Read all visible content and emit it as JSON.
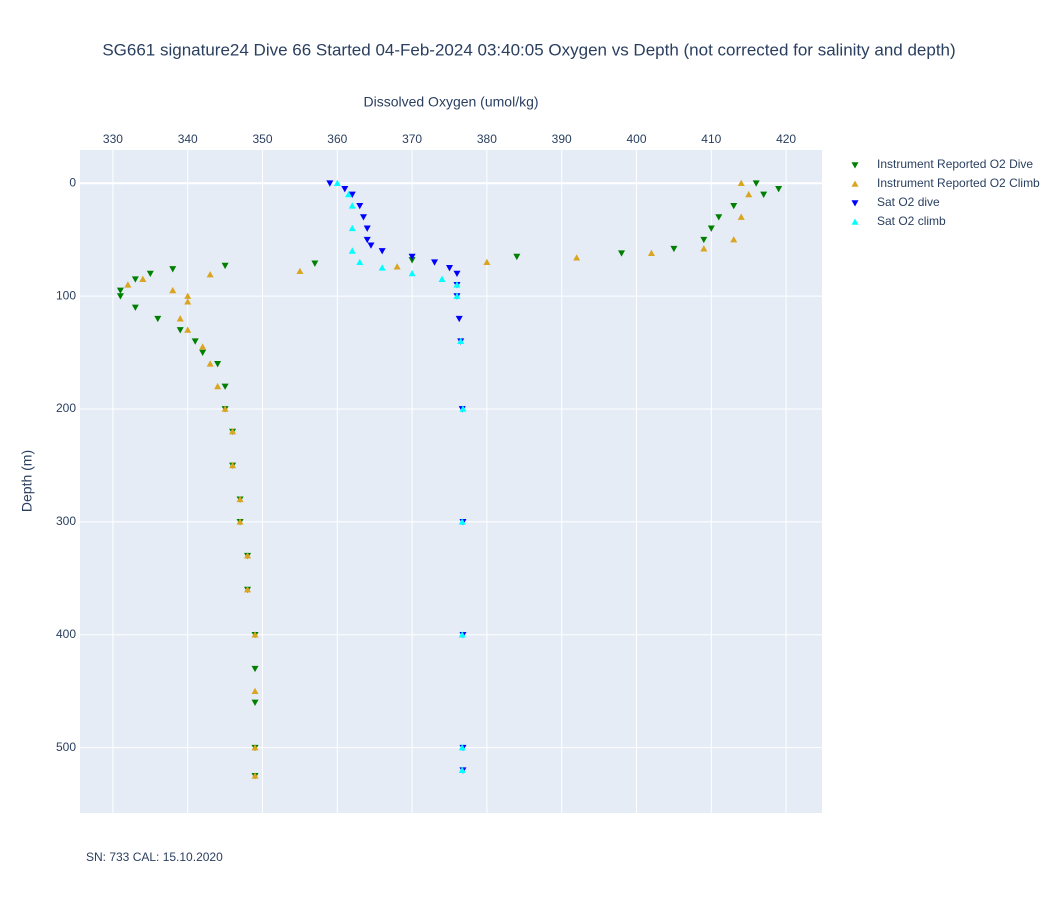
{
  "chart_data": {
    "type": "scatter",
    "title": "SG661 signature24 Dive 66 Started 04-Feb-2024 03:40:05  Oxygen vs Depth (not corrected for salinity and depth)",
    "x_label": "Dissolved Oxygen (umol/kg)",
    "y_label": "Depth (m)",
    "footnote": "SN: 733  CAL: 15.10.2020",
    "xlim": [
      325.6,
      424.8
    ],
    "ylim": [
      -29.4,
      557.9
    ],
    "y_reversed": true,
    "x_axis_side": "top",
    "xticks": [
      330,
      340,
      350,
      360,
      370,
      380,
      390,
      400,
      410,
      420
    ],
    "yticks": [
      0,
      100,
      200,
      300,
      400,
      500
    ],
    "grid": true,
    "series": [
      {
        "name": "Instrument Reported O2 Dive",
        "color": "#008000",
        "marker": "triangle-down",
        "x": [
          416,
          419,
          417,
          413,
          411,
          410,
          409,
          405,
          398,
          384,
          370,
          357,
          345,
          338,
          335,
          333,
          331,
          331,
          333,
          336,
          339,
          341,
          342,
          344,
          345,
          345,
          346,
          346,
          347,
          347,
          348,
          348,
          349,
          349,
          349,
          349,
          349
        ],
        "y": [
          0,
          5,
          10,
          20,
          30,
          40,
          50,
          58,
          62,
          65,
          68,
          71,
          73,
          76,
          80,
          85,
          95,
          100,
          110,
          120,
          130,
          140,
          150,
          160,
          180,
          200,
          220,
          250,
          280,
          300,
          330,
          360,
          400,
          430,
          460,
          500,
          525
        ]
      },
      {
        "name": "Instrument Reported O2 Climb",
        "color": "#daa520",
        "marker": "triangle-up",
        "x": [
          414,
          415,
          414,
          413,
          409,
          402,
          392,
          380,
          368,
          355,
          343,
          334,
          332,
          338,
          340,
          340,
          339,
          340,
          342,
          343,
          344,
          345,
          346,
          346,
          347,
          347,
          348,
          348,
          349,
          349,
          349,
          349
        ],
        "y": [
          0,
          10,
          30,
          50,
          58,
          62,
          66,
          70,
          74,
          78,
          81,
          85,
          90,
          95,
          100,
          105,
          120,
          130,
          145,
          160,
          180,
          200,
          220,
          250,
          280,
          300,
          330,
          360,
          400,
          450,
          500,
          525
        ]
      },
      {
        "name": "Sat O2 dive",
        "color": "#0000ff",
        "marker": "triangle-down",
        "x": [
          359,
          361,
          362,
          363,
          363.5,
          364,
          364,
          364.5,
          366,
          370,
          373,
          375,
          376,
          376,
          376,
          376.3,
          376.5,
          376.7,
          376.8,
          376.8,
          376.8,
          376.8
        ],
        "y": [
          0,
          5,
          10,
          20,
          30,
          40,
          50,
          55,
          60,
          65,
          70,
          75,
          80,
          90,
          100,
          120,
          140,
          200,
          300,
          400,
          500,
          520
        ]
      },
      {
        "name": "Sat O2 climb",
        "color": "#00ffff",
        "marker": "triangle-up",
        "x": [
          360,
          361.5,
          362,
          362,
          362,
          363,
          366,
          370,
          374,
          376,
          376,
          376.5,
          376.8,
          376.7,
          376.7,
          376.7,
          376.7
        ],
        "y": [
          0,
          10,
          20,
          40,
          60,
          70,
          75,
          80,
          85,
          90,
          100,
          140,
          200,
          300,
          400,
          500,
          520
        ]
      }
    ]
  }
}
